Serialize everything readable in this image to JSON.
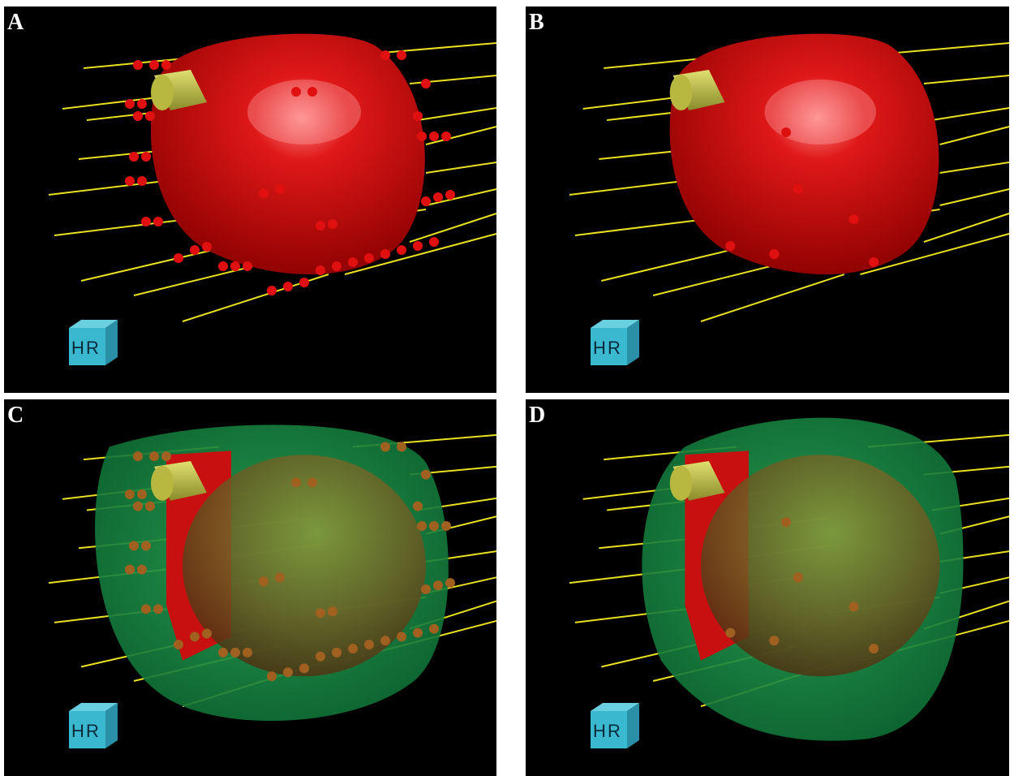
{
  "panels": [
    {
      "label": "A",
      "cube_labels": [
        "H",
        "R"
      ]
    },
    {
      "label": "B",
      "cube_labels": [
        "H",
        "R"
      ]
    },
    {
      "label": "C",
      "cube_labels": [
        "H",
        "R"
      ]
    },
    {
      "label": "D",
      "cube_labels": [
        "H",
        "R"
      ]
    }
  ]
}
